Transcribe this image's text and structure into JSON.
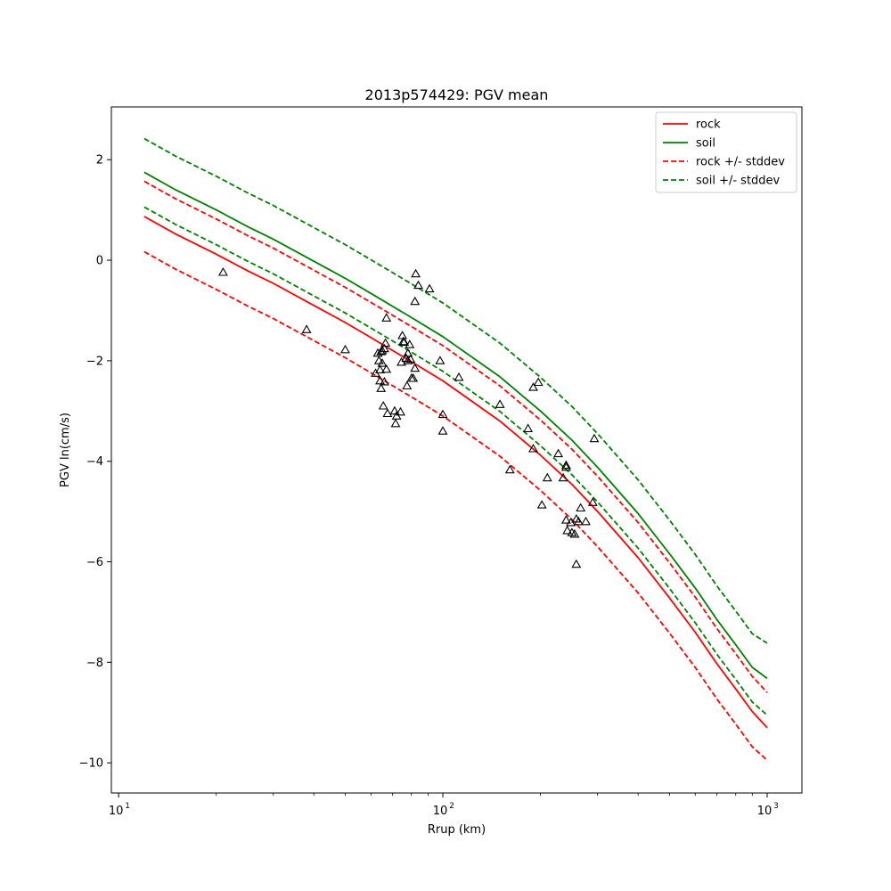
{
  "chart_data": {
    "type": "scatter",
    "title": "2013p574429: PGV mean",
    "xlabel": "Rrup (km)",
    "ylabel": "PGV ln(cm/s)",
    "xscale": "log",
    "xlim": [
      9.5,
      1280
    ],
    "ylim": [
      -10.6,
      3.05
    ],
    "grid": false,
    "legend_position": "top-right",
    "x_ticks": [
      {
        "value": 10,
        "base": "10",
        "exp": "1"
      },
      {
        "value": 100,
        "base": "10",
        "exp": "2"
      },
      {
        "value": 1000,
        "base": "10",
        "exp": "3"
      }
    ],
    "x_minor_ticks": [
      20,
      30,
      40,
      50,
      60,
      70,
      80,
      90,
      200,
      300,
      400,
      500,
      600,
      700,
      800,
      900
    ],
    "y_ticks": [
      {
        "value": 2,
        "label": "2"
      },
      {
        "value": 0,
        "label": "0"
      },
      {
        "value": -2,
        "label": "−2"
      },
      {
        "value": -4,
        "label": "−4"
      },
      {
        "value": -6,
        "label": "−6"
      },
      {
        "value": -8,
        "label": "−8"
      },
      {
        "value": -10,
        "label": "−10"
      }
    ],
    "x": [
      12,
      15,
      20,
      25,
      30,
      40,
      50,
      60,
      80,
      100,
      150,
      200,
      250,
      300,
      400,
      500,
      600,
      700,
      800,
      900,
      1000
    ],
    "series": [
      {
        "name": "rock",
        "color": "#ff0000",
        "dash": false,
        "values": [
          0.87,
          0.52,
          0.12,
          -0.21,
          -0.46,
          -0.9,
          -1.24,
          -1.54,
          -2.02,
          -2.4,
          -3.2,
          -3.88,
          -4.46,
          -5.0,
          -5.92,
          -6.72,
          -7.4,
          -8.03,
          -8.53,
          -8.98,
          -9.3
        ]
      },
      {
        "name": "soil",
        "color": "#008000",
        "dash": false,
        "values": [
          1.75,
          1.4,
          1.0,
          0.67,
          0.42,
          -0.02,
          -0.36,
          -0.66,
          -1.14,
          -1.52,
          -2.32,
          -3.0,
          -3.58,
          -4.12,
          -5.04,
          -5.84,
          -6.52,
          -7.15,
          -7.65,
          -8.1,
          -8.32
        ]
      },
      {
        "name": "rock +/- stddev",
        "color": "#ff0000",
        "dash": true,
        "values": [
          1.57,
          1.22,
          0.82,
          0.49,
          0.24,
          -0.2,
          -0.54,
          -0.84,
          -1.32,
          -1.7,
          -2.5,
          -3.18,
          -3.76,
          -4.3,
          -5.22,
          -6.02,
          -6.7,
          -7.33,
          -7.83,
          -8.28,
          -8.6
        ]
      },
      {
        "name": "",
        "color": "#ff0000",
        "dash": true,
        "values": [
          0.17,
          -0.18,
          -0.58,
          -0.91,
          -1.16,
          -1.6,
          -1.94,
          -2.24,
          -2.72,
          -3.1,
          -3.9,
          -4.58,
          -5.16,
          -5.7,
          -6.62,
          -7.42,
          -8.1,
          -8.73,
          -9.23,
          -9.68,
          -9.95
        ]
      },
      {
        "name": "soil +/- stddev",
        "color": "#008000",
        "dash": true,
        "values": [
          2.42,
          2.07,
          1.67,
          1.34,
          1.09,
          0.65,
          0.31,
          0.01,
          -0.47,
          -0.85,
          -1.65,
          -2.33,
          -2.91,
          -3.45,
          -4.37,
          -5.17,
          -5.85,
          -6.48,
          -6.98,
          -7.43,
          -7.62
        ]
      },
      {
        "name": "",
        "color": "#008000",
        "dash": true,
        "values": [
          1.06,
          0.71,
          0.31,
          -0.02,
          -0.27,
          -0.71,
          -1.05,
          -1.35,
          -1.83,
          -2.21,
          -3.01,
          -3.69,
          -4.27,
          -4.81,
          -5.73,
          -6.53,
          -7.21,
          -7.84,
          -8.34,
          -8.79,
          -9.05
        ]
      }
    ],
    "observations": {
      "marker": "triangle",
      "points": [
        [
          21,
          -0.24
        ],
        [
          38,
          -1.38
        ],
        [
          50,
          -1.78
        ],
        [
          62,
          -2.25
        ],
        [
          63,
          -1.85
        ],
        [
          63.5,
          -2.0
        ],
        [
          64,
          -2.18
        ],
        [
          64,
          -2.4
        ],
        [
          64.5,
          -2.55
        ],
        [
          64.5,
          -1.82
        ],
        [
          65,
          -1.8
        ],
        [
          65,
          -2.05
        ],
        [
          65.5,
          -2.9
        ],
        [
          66,
          -2.42
        ],
        [
          66,
          -1.76
        ],
        [
          66.5,
          -1.65
        ],
        [
          67,
          -2.17
        ],
        [
          67,
          -1.15
        ],
        [
          67.5,
          -3.05
        ],
        [
          71,
          -3.0
        ],
        [
          71.5,
          -3.25
        ],
        [
          72,
          -3.1
        ],
        [
          74,
          -3.02
        ],
        [
          74.5,
          -2.03
        ],
        [
          75,
          -1.5
        ],
        [
          75.5,
          -1.62
        ],
        [
          76,
          -1.63
        ],
        [
          77,
          -1.95
        ],
        [
          77.5,
          -2.5
        ],
        [
          78,
          -1.85
        ],
        [
          78,
          -2.0
        ],
        [
          79,
          -1.68
        ],
        [
          79.5,
          -1.97
        ],
        [
          80,
          -2.35
        ],
        [
          81,
          -2.35
        ],
        [
          82,
          -2.15
        ],
        [
          82,
          -0.82
        ],
        [
          82.5,
          -0.27
        ],
        [
          84,
          -0.5
        ],
        [
          91,
          -0.57
        ],
        [
          98,
          -2.0
        ],
        [
          100,
          -3.07
        ],
        [
          100,
          -3.4
        ],
        [
          112,
          -2.33
        ],
        [
          150,
          -2.87
        ],
        [
          161,
          -4.17
        ],
        [
          183,
          -3.35
        ],
        [
          190,
          -2.53
        ],
        [
          190,
          -3.75
        ],
        [
          197,
          -2.43
        ],
        [
          202,
          -4.87
        ],
        [
          210,
          -4.33
        ],
        [
          227,
          -3.85
        ],
        [
          235,
          -4.33
        ],
        [
          240,
          -4.08
        ],
        [
          240,
          -4.12
        ],
        [
          240,
          -5.17
        ],
        [
          242,
          -5.38
        ],
        [
          248,
          -5.22
        ],
        [
          250,
          -5.42
        ],
        [
          255,
          -5.45
        ],
        [
          258,
          -5.15
        ],
        [
          258,
          -6.05
        ],
        [
          262,
          -5.2
        ],
        [
          266,
          -4.93
        ],
        [
          276,
          -5.2
        ],
        [
          290,
          -4.82
        ],
        [
          293,
          -3.55
        ]
      ]
    }
  }
}
